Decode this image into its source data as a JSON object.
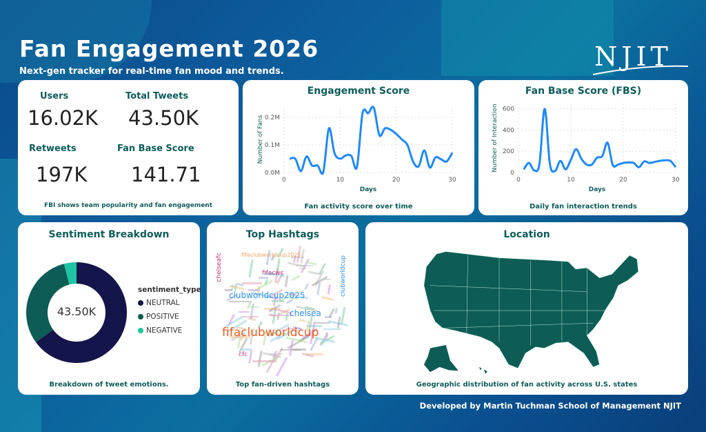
{
  "header": {
    "title": "Fan Engagement 2026",
    "subtitle": "Next-gen tracker for real-time fan mood and trends.",
    "logo": "NJIT"
  },
  "kpis": {
    "items": [
      {
        "label": "Users",
        "value": "16.02K"
      },
      {
        "label": "Total Tweets",
        "value": "43.50K"
      },
      {
        "label": "Retweets",
        "value": "197K"
      },
      {
        "label": "Fan Base Score",
        "value": "141.71"
      }
    ],
    "footnote": "FBI shows team popularity and fan engagement"
  },
  "chart_data": [
    {
      "type": "line",
      "title": "Engagement Score",
      "xlabel": "Days",
      "ylabel": "Number of Fans",
      "caption": "Fan activity score over time",
      "xlim": [
        0,
        30
      ],
      "ylim": [
        0,
        240000
      ],
      "xticks": [
        "0",
        "10",
        "20",
        "30"
      ],
      "yticks": [
        "0.0M",
        "0.1M",
        "0.2M"
      ],
      "color": "#1e88ff",
      "grid": true,
      "x": [
        1,
        2,
        3,
        4,
        5,
        6,
        7,
        8,
        9,
        10,
        11,
        12,
        13,
        14,
        15,
        16,
        17,
        18,
        19,
        20,
        21,
        22,
        23,
        24,
        25,
        26,
        27,
        28,
        29,
        30
      ],
      "y": [
        50000,
        50000,
        5000,
        58000,
        25000,
        25000,
        2000,
        160000,
        70000,
        50000,
        62000,
        60000,
        20000,
        215000,
        215000,
        235000,
        135000,
        160000,
        155000,
        140000,
        120000,
        100000,
        40000,
        22000,
        80000,
        18000,
        55000,
        48000,
        40000,
        72000
      ]
    },
    {
      "type": "line",
      "title": "Fan Base Score (FBS)",
      "xlabel": "Days",
      "ylabel": "Number of Interaction",
      "caption": "Daily fan interaction trends",
      "xlim": [
        0,
        30
      ],
      "ylim": [
        0,
        650
      ],
      "xticks": [
        "0",
        "10",
        "20",
        "30"
      ],
      "yticks": [
        "0",
        "200",
        "400",
        "600"
      ],
      "color": "#1e88ff",
      "grid": true,
      "x": [
        1,
        2,
        3,
        4,
        5,
        6,
        7,
        8,
        9,
        10,
        11,
        12,
        13,
        14,
        15,
        16,
        17,
        18,
        19,
        20,
        21,
        22,
        23,
        24,
        25,
        26,
        27,
        28,
        29,
        30
      ],
      "y": [
        30,
        90,
        20,
        80,
        600,
        80,
        15,
        110,
        30,
        120,
        220,
        130,
        75,
        75,
        140,
        155,
        280,
        70,
        75,
        90,
        95,
        90,
        50,
        105,
        90,
        100,
        110,
        115,
        110,
        50
      ]
    },
    {
      "type": "pie",
      "title": "Sentiment Breakdown",
      "center_label": "43.50K",
      "legend_title": "sentiment_type",
      "legend_position": "right",
      "caption": "Breakdown of tweet emotions.",
      "categories": [
        "NEUTRAL",
        "POSITIVE",
        "NEGATIVE"
      ],
      "values": [
        65,
        31,
        4
      ],
      "colors": [
        "#14154a",
        "#0d5c55",
        "#1ec4a4"
      ]
    }
  ],
  "hashtags": {
    "title": "Top Hashtags",
    "caption": "Top fan-driven hashtags",
    "words": [
      {
        "text": "fifaclubworldcup",
        "color": "#f05a1e"
      },
      {
        "text": "clubworldcup2025",
        "color": "#2a8ef0"
      },
      {
        "text": "chelsea",
        "color": "#2a8ef0"
      },
      {
        "text": "fifacwc",
        "color": "#c0307a"
      },
      {
        "text": "chelseafc",
        "color": "#c0307a"
      },
      {
        "text": "clubworldcup",
        "color": "#2a8ef0"
      },
      {
        "text": "fifaclubworldcup2025",
        "color": "#f0a060"
      },
      {
        "text": "cfc",
        "color": "#c0307a"
      }
    ]
  },
  "location": {
    "title": "Location",
    "caption": "Geographic distribution of fan activity across U.S. states",
    "fill": "#0d5c55"
  },
  "footer": "Developed by Martin Tuchman School of Management NJIT"
}
